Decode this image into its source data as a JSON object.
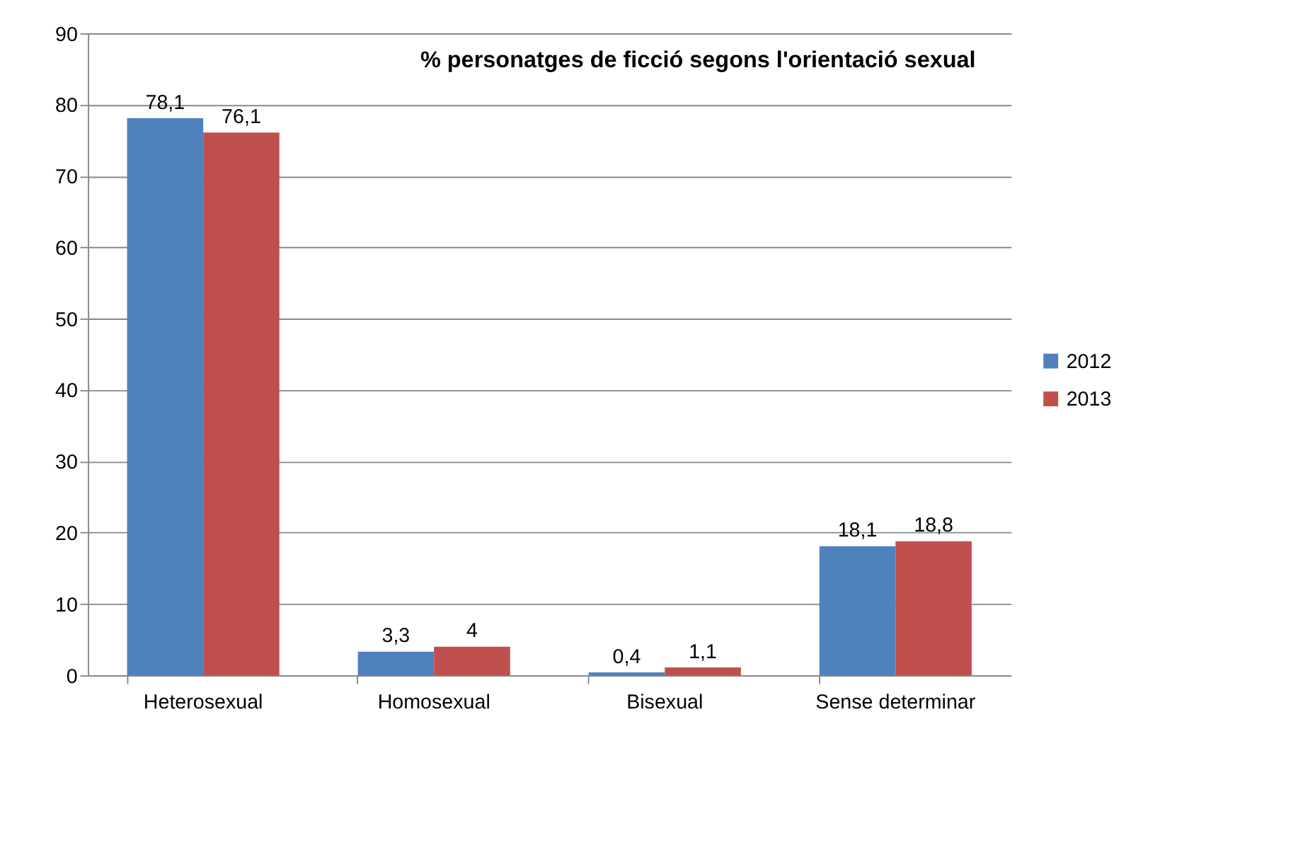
{
  "chart_data": {
    "type": "bar",
    "title": "% personatges de ficció segons l'orientació sexual",
    "categories": [
      "Heterosexual",
      "Homosexual",
      "Bisexual",
      "Sense determinar"
    ],
    "series": [
      {
        "name": "2012",
        "color": "#4f81bd",
        "values": [
          78.1,
          3.3,
          0.4,
          18.1
        ],
        "value_labels": [
          "78,1",
          "3,3",
          "0,4",
          "18,1"
        ]
      },
      {
        "name": "2013",
        "color": "#c0504d",
        "values": [
          76.1,
          4,
          1.1,
          18.8
        ],
        "value_labels": [
          "76,1",
          "4",
          "1,1",
          "18,8"
        ]
      }
    ],
    "ylim": [
      0,
      90
    ],
    "yticks": [
      0,
      10,
      20,
      30,
      40,
      50,
      60,
      70,
      80,
      90
    ],
    "grid": "y",
    "legend": "right"
  }
}
